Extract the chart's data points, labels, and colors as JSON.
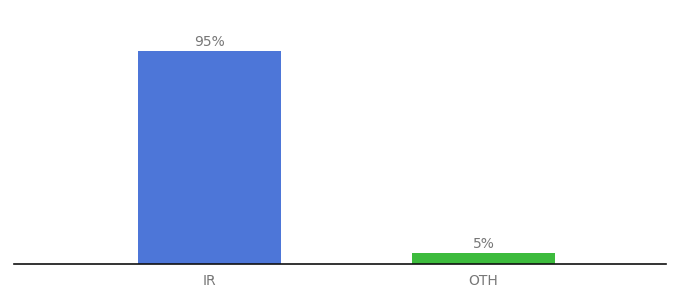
{
  "categories": [
    "IR",
    "OTH"
  ],
  "values": [
    95,
    5
  ],
  "bar_colors": [
    "#4d76d8",
    "#3dbb3d"
  ],
  "label_texts": [
    "95%",
    "5%"
  ],
  "background_color": "#ffffff",
  "x_positions": [
    0.3,
    0.72
  ],
  "xlim": [
    0.0,
    1.0
  ],
  "ylim": [
    0,
    107
  ],
  "bar_width": 0.22,
  "label_fontsize": 10,
  "tick_fontsize": 10,
  "tick_color": "#777777",
  "label_color": "#777777"
}
